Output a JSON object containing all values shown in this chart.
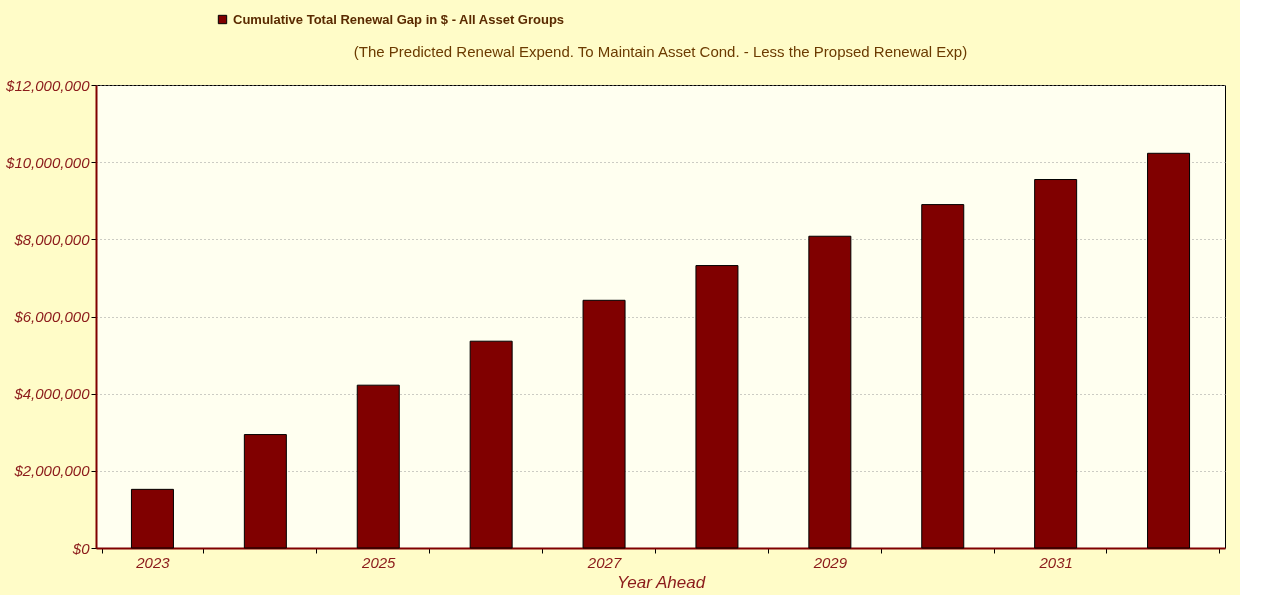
{
  "chart_data": {
    "type": "bar",
    "subtitle": "(The Predicted Renewal Expend. To Maintain Asset Cond. -  Less the Propsed Renewal Exp)",
    "xlabel": "Year Ahead",
    "categories": [
      "2023",
      null,
      "2025",
      null,
      "2027",
      null,
      "2029",
      null,
      "2031",
      null
    ],
    "series": [
      {
        "name": "Cumulative Total Renewal Gap in $ -  All Asset Groups",
        "color": "#800000",
        "values": [
          1520000,
          2940000,
          4220000,
          5360000,
          6420000,
          7320000,
          8080000,
          8900000,
          9550000,
          10230000
        ]
      }
    ],
    "ylim": [
      0,
      12000000
    ],
    "yticks": [
      {
        "value": 0,
        "label": "$0"
      },
      {
        "value": 2000000,
        "label": "$2,000,000"
      },
      {
        "value": 4000000,
        "label": "$4,000,000"
      },
      {
        "value": 6000000,
        "label": "$6,000,000"
      },
      {
        "value": 8000000,
        "label": "$8,000,000"
      },
      {
        "value": 10000000,
        "label": "$10,000,000"
      },
      {
        "value": 12000000,
        "label": "$12,000,000"
      }
    ],
    "grid": "y",
    "legend": "top"
  }
}
